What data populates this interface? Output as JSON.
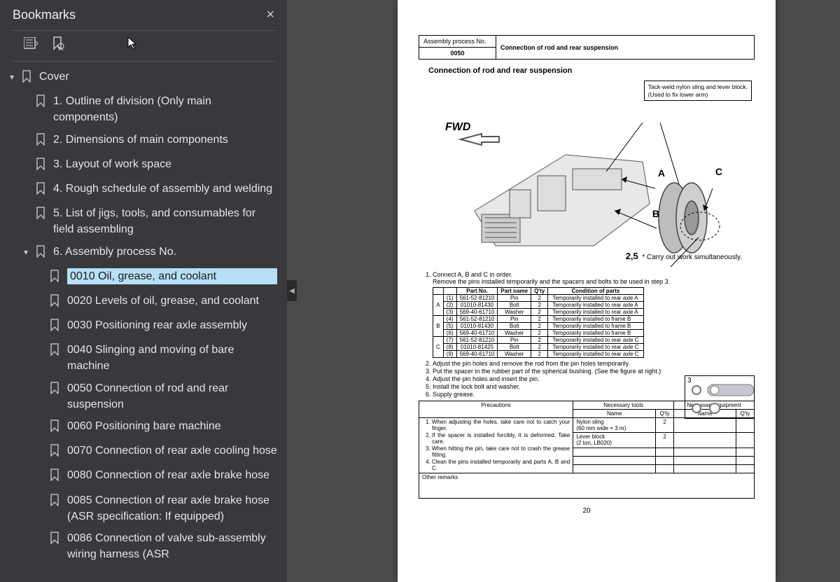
{
  "sidebar": {
    "title": "Bookmarks",
    "root": {
      "label": "Cover",
      "children": [
        {
          "label": "1. Outline of division (Only main components)"
        },
        {
          "label": "2. Dimensions of main components"
        },
        {
          "label": "3. Layout of work space"
        },
        {
          "label": "4. Rough schedule of assembly and welding"
        },
        {
          "label": "5. List of jigs, tools, and consumables for field assembling"
        },
        {
          "label": "6. Assembly process No.",
          "expanded": true,
          "children": [
            {
              "label": "0010 Oil, grease, and coolant",
              "selected": true
            },
            {
              "label": "0020 Levels of oil, grease, and coolant"
            },
            {
              "label": "0030 Positioning rear axle assembly"
            },
            {
              "label": "0040 Slinging and moving of bare machine"
            },
            {
              "label": "0050 Connection of rod and rear suspension"
            },
            {
              "label": "0060 Positioning bare machine"
            },
            {
              "label": "0070 Connection of rear axle cooling hose"
            },
            {
              "label": "0080 Connection of rear axle brake hose"
            },
            {
              "label": "0085 Connection of rear axle brake hose (ASR specification: If equipped)"
            },
            {
              "label": "0086 Connection of valve sub-assembly wiring harness (ASR"
            }
          ]
        }
      ]
    }
  },
  "doc": {
    "header": {
      "process_no_label": "Assembly process No.",
      "process_no": "0050",
      "title": "Connection of rod and rear suspension"
    },
    "subtitle": "Connection of rod and rear suspension",
    "diagram": {
      "fwd": "FWD",
      "callout": "Tack-weld nylon sling and lever block.\n(Used to fix lower arm)",
      "A": "A",
      "B": "B",
      "C": "C",
      "note": "2,5",
      "note_text": "* Carry out work simultaneously."
    },
    "step1_a": "Connect A, B and C in order.",
    "step1_b": "Remove the pins installed temporarily and the spacers and bolts to be used in step 3.",
    "parts_headers": [
      "",
      "",
      "Part No.",
      "Part name",
      "Q'ty",
      "Condition of parts"
    ],
    "parts_rows": [
      [
        "A",
        "(1)",
        "561-52-81210",
        "Pin",
        "2",
        "Temporarily installed to rear axle A"
      ],
      [
        "",
        "(2)",
        "01010-81430",
        "Bolt",
        "2",
        "Temporarily installed to rear axle A"
      ],
      [
        "",
        "(3)",
        "569-40-61710",
        "Washer",
        "2",
        "Temporarily installed to rear axle A"
      ],
      [
        "B",
        "(4)",
        "561-52-81210",
        "Pin",
        "2",
        "Temporarily installed to frame B"
      ],
      [
        "",
        "(5)",
        "01010-81430",
        "Bolt",
        "2",
        "Temporarily installed to frame B"
      ],
      [
        "",
        "(6)",
        "569-40-61710",
        "Washer",
        "2",
        "Temporarily installed to frame B"
      ],
      [
        "C",
        "(7)",
        "561-52-81210",
        "Pin",
        "2",
        "Temporarily installed to rear axle C"
      ],
      [
        "",
        "(8)",
        "01010-81425",
        "Bolt",
        "2",
        "Temporarily installed to rear axle C"
      ],
      [
        "",
        "(9)",
        "569-40-61710",
        "Washer",
        "2",
        "Temporarily installed to rear axle C"
      ]
    ],
    "steps_rest": [
      "Adjust the pin holes and remove the rod from the pin holes temporarily.",
      "Put the spacer in the rubber part of the spherical bushing.  (See the figure at right.)",
      "Adjust the pin holes and insert the pin.",
      "Install the lock bolt and washer.",
      "Supply grease."
    ],
    "inset_label": "3",
    "bottom": {
      "prec_header": "Precautions",
      "tools_header": "Necessary tools",
      "equip_header": "Necessary equipment",
      "name": "Name",
      "qty": "Q'ty",
      "tools": [
        {
          "name": "Nylon sling\n(60 mm wide × 3 m)",
          "qty": "2"
        },
        {
          "name": "Lever block\n(2 ton, LB020)",
          "qty": "2"
        }
      ],
      "precautions": [
        "When adjusting the holes, take care not to catch your finger.",
        "If the spacer is installed forcibly, it is deformed.  Take care.",
        "When hitting the pin, take care not to crash the grease fitting.",
        "Clean the pins installed temporarily and parts A, B and C."
      ],
      "remarks": "Other remarks"
    },
    "page_number": "20"
  },
  "colors": {
    "sidebar_bg": "#38383d",
    "stage_bg": "#4a4a4a",
    "selection_bg": "#b6e0f7",
    "text_light": "#e6e6e6",
    "page_bg": "#ffffff",
    "border": "#000000"
  }
}
